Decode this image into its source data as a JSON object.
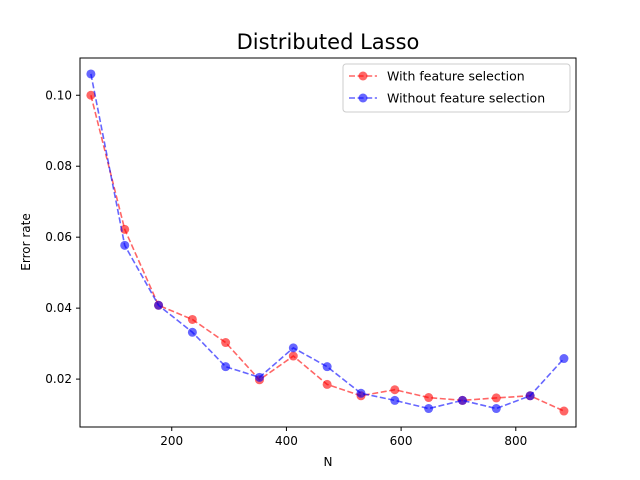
{
  "chart_data": {
    "type": "line",
    "title": "Distributed Lasso",
    "xlabel": "N",
    "ylabel": "Error rate",
    "xlim": [
      40,
      905
    ],
    "ylim": [
      0.0065,
      0.1105
    ],
    "xticks": [
      200,
      400,
      600,
      800
    ],
    "xtick_labels": [
      "200",
      "400",
      "600",
      "800"
    ],
    "yticks": [
      0.02,
      0.04,
      0.06,
      0.08,
      0.1
    ],
    "ytick_labels": [
      "0.02",
      "0.04",
      "0.06",
      "0.08",
      "0.10"
    ],
    "grid": false,
    "legend_position": "top-right",
    "x": [
      59,
      118,
      177,
      236,
      294,
      353,
      412,
      471,
      530,
      589,
      648,
      707,
      766,
      825,
      884
    ],
    "series": [
      {
        "name": "With feature selection",
        "color": "#ff0000",
        "values": [
          0.1,
          0.0622,
          0.0408,
          0.0368,
          0.0303,
          0.0198,
          0.0265,
          0.0185,
          0.0153,
          0.017,
          0.0148,
          0.014,
          0.0147,
          0.0153,
          0.011
        ]
      },
      {
        "name": "Without feature selection",
        "color": "#0000ff",
        "values": [
          0.106,
          0.0577,
          0.0408,
          0.0332,
          0.0235,
          0.0205,
          0.0288,
          0.0235,
          0.016,
          0.014,
          0.0117,
          0.014,
          0.0117,
          0.0153,
          0.0258
        ]
      }
    ]
  }
}
